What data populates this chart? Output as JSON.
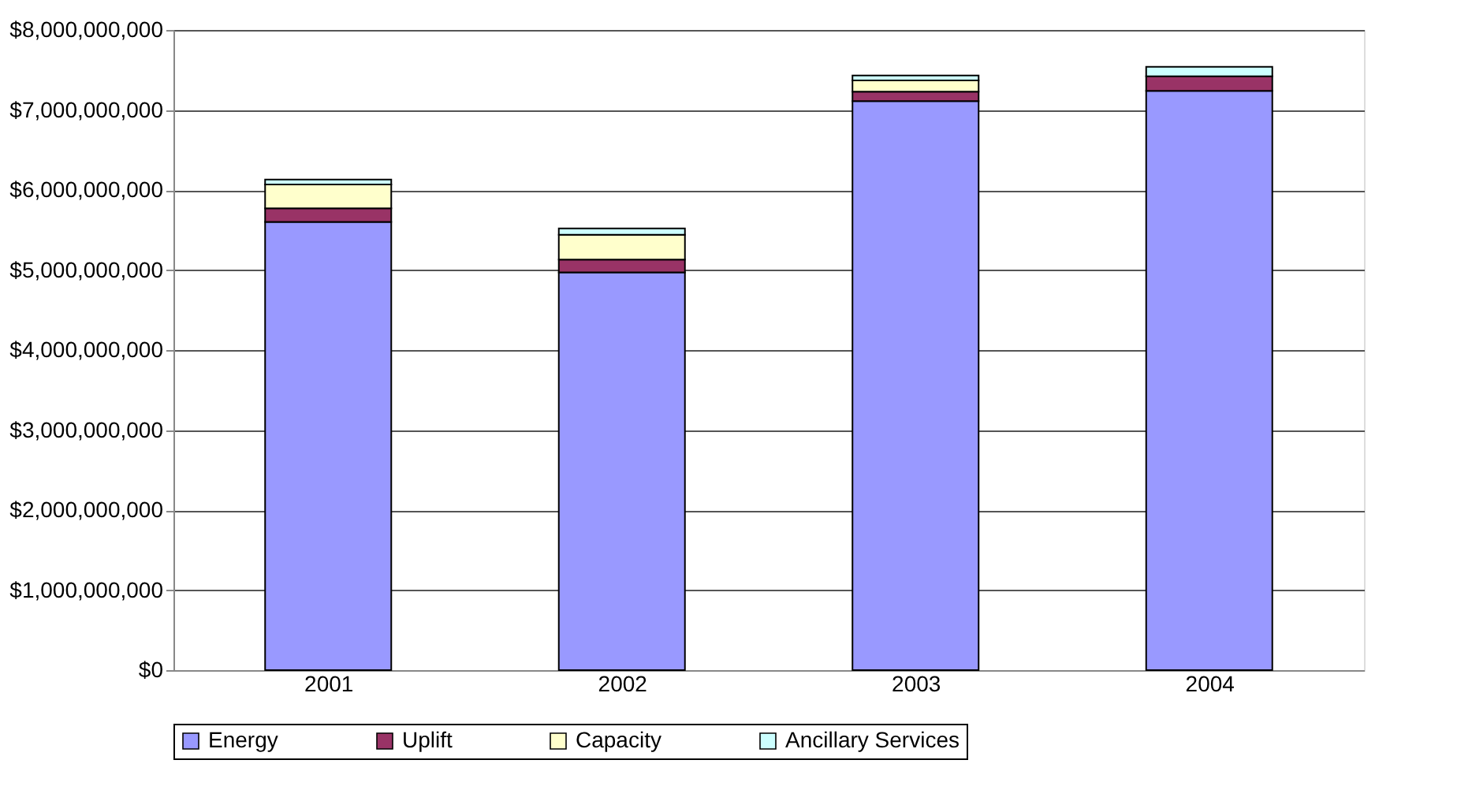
{
  "chart_data": {
    "type": "bar",
    "stacked": true,
    "categories": [
      "2001",
      "2002",
      "2003",
      "2004"
    ],
    "series": [
      {
        "name": "Energy",
        "color": "#9999ff",
        "values": [
          5600000000,
          4970000000,
          7110000000,
          7240000000
        ]
      },
      {
        "name": "Uplift",
        "color": "#993366",
        "values": [
          170000000,
          160000000,
          120000000,
          180000000
        ]
      },
      {
        "name": "Capacity",
        "color": "#ffffcc",
        "values": [
          300000000,
          310000000,
          140000000,
          null
        ]
      },
      {
        "name": "Ancillary Services",
        "color": "#ccffff",
        "values": [
          60000000,
          80000000,
          60000000,
          120000000
        ]
      }
    ],
    "ylim": [
      0,
      8000000000
    ],
    "yticks": [
      {
        "value": 0,
        "label": "$0"
      },
      {
        "value": 1000000000,
        "label": "$1,000,000,000"
      },
      {
        "value": 2000000000,
        "label": "$2,000,000,000"
      },
      {
        "value": 3000000000,
        "label": "$3,000,000,000"
      },
      {
        "value": 4000000000,
        "label": "$4,000,000,000"
      },
      {
        "value": 5000000000,
        "label": "$5,000,000,000"
      },
      {
        "value": 6000000000,
        "label": "$6,000,000,000"
      },
      {
        "value": 7000000000,
        "label": "$7,000,000,000"
      },
      {
        "value": 8000000000,
        "label": "$8,000,000,000"
      }
    ],
    "grid": "y",
    "legend": "bottom"
  }
}
